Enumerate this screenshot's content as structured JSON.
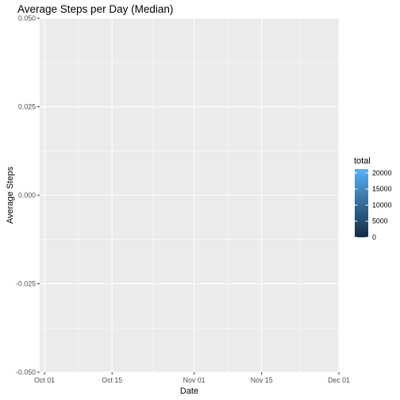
{
  "chart_data": {
    "type": "bar",
    "title": "Average Steps per Day (Median)",
    "xlabel": "Date",
    "ylabel": "Average Steps",
    "x_ticks": [
      "Oct 01",
      "Oct 15",
      "Nov 01",
      "Nov 15",
      "Dec 01"
    ],
    "x_tick_dates": [
      "2012-10-01",
      "2012-10-15",
      "2012-11-01",
      "2012-11-15",
      "2012-12-01"
    ],
    "xlim": [
      "2012-09-30",
      "2012-12-01"
    ],
    "y_ticks": [
      "0.050",
      "0.025",
      "0.000",
      "-0.025",
      "-0.050"
    ],
    "y_tick_values": [
      0.05,
      0.025,
      0,
      -0.025,
      -0.05
    ],
    "ylim": [
      -0.05,
      0.05
    ],
    "values": [],
    "grid": true,
    "legend": {
      "title": "total",
      "labels": [
        "20000",
        "15000",
        "10000",
        "5000",
        "0"
      ],
      "values": [
        20000,
        15000,
        10000,
        5000,
        0
      ],
      "range": [
        0,
        21194
      ],
      "color_low": "#132B43",
      "color_high": "#56B1F7",
      "placement": "right"
    },
    "panel_color": "#EBEBEB",
    "gridline_color": "#FFFFFF"
  }
}
